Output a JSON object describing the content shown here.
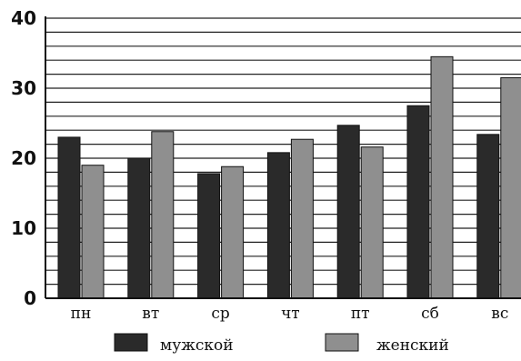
{
  "chart_data": {
    "type": "bar",
    "categories": [
      "пн",
      "вт",
      "ср",
      "чт",
      "пт",
      "сб",
      "вс"
    ],
    "series": [
      {
        "name": "мужской",
        "values": [
          23,
          20,
          17.8,
          20.8,
          24.7,
          27.5,
          23.4
        ],
        "color": "#2a2a2a"
      },
      {
        "name": "женский",
        "values": [
          19,
          23.8,
          18.8,
          22.7,
          21.6,
          34.5,
          31.5
        ],
        "color": "#8f8f8f"
      }
    ],
    "title": "",
    "xlabel": "",
    "ylabel": "",
    "ylim": [
      0,
      40
    ],
    "yticks": [
      0,
      10,
      20,
      30,
      40
    ],
    "grid": true,
    "grid_step": 2,
    "legend_position": "bottom"
  }
}
